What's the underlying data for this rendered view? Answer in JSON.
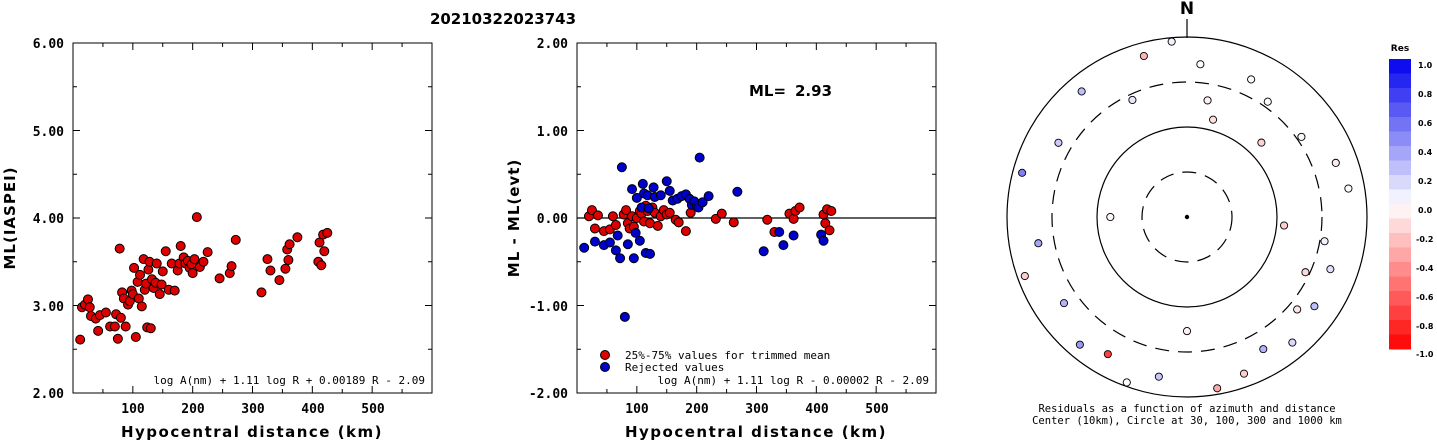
{
  "header": {
    "event_id": "20210322023743"
  },
  "chart_data": [
    {
      "type": "scatter",
      "xlabel": "Hypocentral distance (km)",
      "ylabel": "ML(IASPEI)",
      "xlim": [
        0,
        600
      ],
      "ylim": [
        2.0,
        6.0
      ],
      "x_ticks": [
        "100",
        "200",
        "300",
        "400",
        "500"
      ],
      "y_ticks": [
        "2.00",
        "3.00",
        "4.00",
        "5.00",
        "6.00"
      ],
      "formula": "log A(nm) + 1.11 log R + 0.00189 R - 2.09",
      "marker_color": "#dd0000",
      "points": [
        [
          12,
          2.61
        ],
        [
          15,
          2.98
        ],
        [
          20,
          3.01
        ],
        [
          25,
          3.07
        ],
        [
          28,
          2.98
        ],
        [
          30,
          2.88
        ],
        [
          38,
          2.85
        ],
        [
          42,
          2.71
        ],
        [
          45,
          2.89
        ],
        [
          55,
          2.92
        ],
        [
          62,
          2.76
        ],
        [
          70,
          2.76
        ],
        [
          72,
          2.9
        ],
        [
          75,
          2.62
        ],
        [
          78,
          3.65
        ],
        [
          80,
          2.86
        ],
        [
          82,
          3.15
        ],
        [
          85,
          3.08
        ],
        [
          88,
          2.76
        ],
        [
          92,
          3.01
        ],
        [
          95,
          3.05
        ],
        [
          98,
          3.17
        ],
        [
          100,
          3.13
        ],
        [
          102,
          3.43
        ],
        [
          105,
          2.64
        ],
        [
          108,
          3.27
        ],
        [
          110,
          3.08
        ],
        [
          112,
          3.35
        ],
        [
          115,
          2.99
        ],
        [
          118,
          3.53
        ],
        [
          120,
          3.18
        ],
        [
          122,
          3.25
        ],
        [
          124,
          2.75
        ],
        [
          126,
          3.41
        ],
        [
          128,
          3.5
        ],
        [
          130,
          2.74
        ],
        [
          132,
          3.3
        ],
        [
          135,
          3.2
        ],
        [
          138,
          3.26
        ],
        [
          140,
          3.48
        ],
        [
          145,
          3.13
        ],
        [
          148,
          3.24
        ],
        [
          150,
          3.39
        ],
        [
          155,
          3.62
        ],
        [
          160,
          3.18
        ],
        [
          165,
          3.48
        ],
        [
          170,
          3.17
        ],
        [
          175,
          3.4
        ],
        [
          178,
          3.48
        ],
        [
          180,
          3.68
        ],
        [
          185,
          3.55
        ],
        [
          188,
          3.48
        ],
        [
          192,
          3.51
        ],
        [
          195,
          3.43
        ],
        [
          198,
          3.47
        ],
        [
          200,
          3.37
        ],
        [
          203,
          3.53
        ],
        [
          207,
          4.01
        ],
        [
          212,
          3.44
        ],
        [
          218,
          3.5
        ],
        [
          225,
          3.61
        ],
        [
          245,
          3.31
        ],
        [
          262,
          3.37
        ],
        [
          265,
          3.45
        ],
        [
          272,
          3.75
        ],
        [
          315,
          3.15
        ],
        [
          325,
          3.53
        ],
        [
          330,
          3.4
        ],
        [
          345,
          3.29
        ],
        [
          355,
          3.42
        ],
        [
          358,
          3.64
        ],
        [
          360,
          3.52
        ],
        [
          362,
          3.7
        ],
        [
          375,
          3.78
        ],
        [
          410,
          3.5
        ],
        [
          412,
          3.72
        ],
        [
          415,
          3.46
        ],
        [
          418,
          3.81
        ],
        [
          420,
          3.62
        ],
        [
          425,
          3.83
        ]
      ]
    },
    {
      "type": "scatter",
      "xlabel": "Hypocentral distance (km)",
      "ylabel": "ML - ML(evt)",
      "xlim": [
        0,
        600
      ],
      "ylim": [
        -2.0,
        2.0
      ],
      "x_ticks": [
        "100",
        "200",
        "300",
        "400",
        "500"
      ],
      "y_ticks": [
        "-2.00",
        "-1.00",
        "0.00",
        "1.00",
        "2.00"
      ],
      "ml_label": "ML=",
      "ml_value": "2.93",
      "formula": "log A(nm) + 1.11 log R - 0.00002 R - 2.09",
      "legend": [
        {
          "label": "25%-75% values for trimmed mean",
          "color": "#dd0000"
        },
        {
          "label": "Rejected values",
          "color": "#0000cc"
        }
      ],
      "series": [
        {
          "name": "25%-75% values for trimmed mean",
          "color": "#dd0000",
          "points": [
            [
              20,
              0.02
            ],
            [
              25,
              0.09
            ],
            [
              30,
              -0.12
            ],
            [
              35,
              0.03
            ],
            [
              45,
              -0.15
            ],
            [
              55,
              -0.13
            ],
            [
              60,
              0.02
            ],
            [
              65,
              -0.08
            ],
            [
              78,
              0.04
            ],
            [
              82,
              0.09
            ],
            [
              85,
              -0.06
            ],
            [
              88,
              -0.12
            ],
            [
              92,
              0.02
            ],
            [
              95,
              -0.1
            ],
            [
              100,
              0.0
            ],
            [
              105,
              0.08
            ],
            [
              108,
              0.05
            ],
            [
              112,
              -0.04
            ],
            [
              115,
              0.14
            ],
            [
              118,
              0.08
            ],
            [
              122,
              -0.06
            ],
            [
              126,
              0.12
            ],
            [
              130,
              0.06
            ],
            [
              135,
              -0.09
            ],
            [
              140,
              0.02
            ],
            [
              145,
              0.09
            ],
            [
              150,
              0.04
            ],
            [
              155,
              0.06
            ],
            [
              165,
              -0.02
            ],
            [
              170,
              -0.05
            ],
            [
              182,
              -0.15
            ],
            [
              190,
              0.06
            ],
            [
              232,
              -0.01
            ],
            [
              242,
              0.05
            ],
            [
              262,
              -0.05
            ],
            [
              318,
              -0.02
            ],
            [
              330,
              -0.16
            ],
            [
              355,
              0.05
            ],
            [
              362,
              -0.01
            ],
            [
              365,
              0.08
            ],
            [
              372,
              0.12
            ],
            [
              412,
              0.04
            ],
            [
              415,
              -0.06
            ],
            [
              418,
              0.1
            ],
            [
              422,
              -0.14
            ],
            [
              425,
              0.08
            ]
          ]
        },
        {
          "name": "Rejected values",
          "color": "#0000cc",
          "points": [
            [
              12,
              -0.34
            ],
            [
              30,
              -0.27
            ],
            [
              45,
              -0.31
            ],
            [
              55,
              -0.28
            ],
            [
              65,
              -0.37
            ],
            [
              68,
              -0.2
            ],
            [
              72,
              -0.46
            ],
            [
              75,
              0.58
            ],
            [
              80,
              -1.13
            ],
            [
              85,
              -0.3
            ],
            [
              92,
              0.33
            ],
            [
              95,
              -0.46
            ],
            [
              98,
              -0.17
            ],
            [
              100,
              0.23
            ],
            [
              105,
              -0.26
            ],
            [
              108,
              0.12
            ],
            [
              110,
              0.39
            ],
            [
              112,
              0.28
            ],
            [
              115,
              -0.4
            ],
            [
              118,
              0.26
            ],
            [
              120,
              0.11
            ],
            [
              122,
              -0.41
            ],
            [
              128,
              0.35
            ],
            [
              130,
              0.24
            ],
            [
              140,
              0.26
            ],
            [
              150,
              0.42
            ],
            [
              155,
              0.31
            ],
            [
              160,
              0.2
            ],
            [
              168,
              0.22
            ],
            [
              175,
              0.25
            ],
            [
              182,
              0.27
            ],
            [
              188,
              0.22
            ],
            [
              192,
              0.15
            ],
            [
              196,
              0.19
            ],
            [
              200,
              0.14
            ],
            [
              203,
              0.12
            ],
            [
              205,
              0.69
            ],
            [
              210,
              0.18
            ],
            [
              220,
              0.25
            ],
            [
              268,
              0.3
            ],
            [
              312,
              -0.38
            ],
            [
              338,
              -0.16
            ],
            [
              345,
              -0.31
            ],
            [
              362,
              -0.2
            ],
            [
              408,
              -0.19
            ],
            [
              412,
              -0.26
            ]
          ]
        }
      ]
    },
    {
      "type": "scatter",
      "subtype": "polar",
      "north_label": "N",
      "caption_line1": "Residuals as a function of azimuth and distance",
      "caption_line2": "Center (10km), Circle at 30, 100, 300 and 1000 km",
      "colorbar": {
        "title": "Res",
        "ticks": [
          "1.0",
          "0.8",
          "0.6",
          "0.4",
          "0.2",
          "0.0",
          "-0.2",
          "-0.4",
          "-0.6",
          "-0.8",
          "-1.0"
        ],
        "positive_color": "#0022ee",
        "negative_color": "#ff0000"
      },
      "stations": [
        {
          "az": 5,
          "dist": 490,
          "res": -0.01
        },
        {
          "az": 10,
          "dist": 200,
          "res": -0.05
        },
        {
          "az": 15,
          "dist": 130,
          "res": -0.12
        },
        {
          "az": 25,
          "dist": 470,
          "res": -0.02
        },
        {
          "az": 35,
          "dist": 350,
          "res": -0.01
        },
        {
          "az": 45,
          "dist": 145,
          "res": -0.18
        },
        {
          "az": 55,
          "dist": 340,
          "res": 0.03
        },
        {
          "az": 70,
          "dist": 560,
          "res": -0.08
        },
        {
          "az": 80,
          "dist": 650,
          "res": -0.02
        },
        {
          "az": 95,
          "dist": 120,
          "res": -0.2
        },
        {
          "az": 100,
          "dist": 340,
          "res": 0.05
        },
        {
          "az": 110,
          "dist": 480,
          "res": 0.12
        },
        {
          "az": 115,
          "dist": 270,
          "res": -0.15
        },
        {
          "az": 125,
          "dist": 520,
          "res": 0.25
        },
        {
          "az": 130,
          "dist": 380,
          "res": -0.1
        },
        {
          "az": 140,
          "dist": 650,
          "res": 0.15
        },
        {
          "az": 150,
          "dist": 480,
          "res": 0.3
        },
        {
          "az": 160,
          "dist": 700,
          "res": -0.2
        },
        {
          "az": 170,
          "dist": 850,
          "res": -0.35
        },
        {
          "az": 180,
          "dist": 180,
          "res": -0.05
        },
        {
          "az": 190,
          "dist": 620,
          "res": 0.22
        },
        {
          "az": 200,
          "dist": 900,
          "res": 0.0
        },
        {
          "az": 210,
          "dist": 560,
          "res": -0.75
        },
        {
          "az": 220,
          "dist": 700,
          "res": 0.4
        },
        {
          "az": 235,
          "dist": 450,
          "res": 0.3
        },
        {
          "az": 250,
          "dist": 820,
          "res": -0.2
        },
        {
          "az": 260,
          "dist": 460,
          "res": 0.35
        },
        {
          "az": 270,
          "dist": 70,
          "res": -0.03
        },
        {
          "az": 285,
          "dist": 780,
          "res": 0.5
        },
        {
          "az": 300,
          "dist": 430,
          "res": 0.2
        },
        {
          "az": 320,
          "dist": 650,
          "res": 0.25
        },
        {
          "az": 335,
          "dist": 260,
          "res": 0.1
        },
        {
          "az": 345,
          "dist": 700,
          "res": -0.3
        },
        {
          "az": 355,
          "dist": 900,
          "res": 0.05
        }
      ]
    }
  ]
}
